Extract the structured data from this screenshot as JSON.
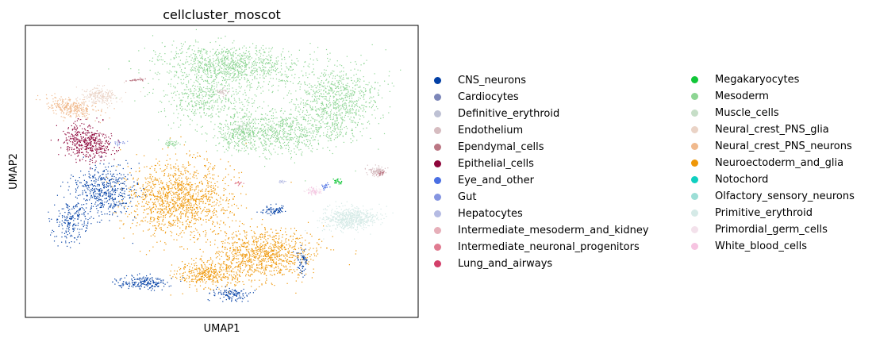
{
  "chart_data": {
    "type": "scatter",
    "title": "cellcluster_moscot",
    "xlabel": "UMAP1",
    "ylabel": "UMAP2",
    "grid": false,
    "ticks": "none",
    "legend_position": "right, two columns",
    "categories": [
      {
        "name": "CNS_neurons",
        "color": "#023fa5"
      },
      {
        "name": "Cardiocytes",
        "color": "#7d87b9"
      },
      {
        "name": "Definitive_erythroid",
        "color": "#bec1d4"
      },
      {
        "name": "Endothelium",
        "color": "#d6bcc0"
      },
      {
        "name": "Ependymal_cells",
        "color": "#bb7784"
      },
      {
        "name": "Epithelial_cells",
        "color": "#8e063b"
      },
      {
        "name": "Eye_and_other",
        "color": "#4a6fe3"
      },
      {
        "name": "Gut",
        "color": "#8595e1"
      },
      {
        "name": "Hepatocytes",
        "color": "#b5bbe3"
      },
      {
        "name": "Intermediate_mesoderm_and_kidney",
        "color": "#e6afb9"
      },
      {
        "name": "Intermediate_neuronal_progenitors",
        "color": "#e07b91"
      },
      {
        "name": "Lung_and_airways",
        "color": "#d33f6a"
      },
      {
        "name": "Megakaryocytes",
        "color": "#11c638"
      },
      {
        "name": "Mesoderm",
        "color": "#8dd593"
      },
      {
        "name": "Muscle_cells",
        "color": "#c6dec7"
      },
      {
        "name": "Neural_crest_PNS_glia",
        "color": "#ead3c6"
      },
      {
        "name": "Neural_crest_PNS_neurons",
        "color": "#f0b98d"
      },
      {
        "name": "Neuroectoderm_and_glia",
        "color": "#ef9708"
      },
      {
        "name": "Notochord",
        "color": "#0fcfc0"
      },
      {
        "name": "Olfactory_sensory_neurons",
        "color": "#9cded6"
      },
      {
        "name": "Primitive_erythroid",
        "color": "#d5eae7"
      },
      {
        "name": "Primordial_germ_cells",
        "color": "#f3e1eb"
      },
      {
        "name": "White_blood_cells",
        "color": "#f6c4e1"
      }
    ]
  }
}
